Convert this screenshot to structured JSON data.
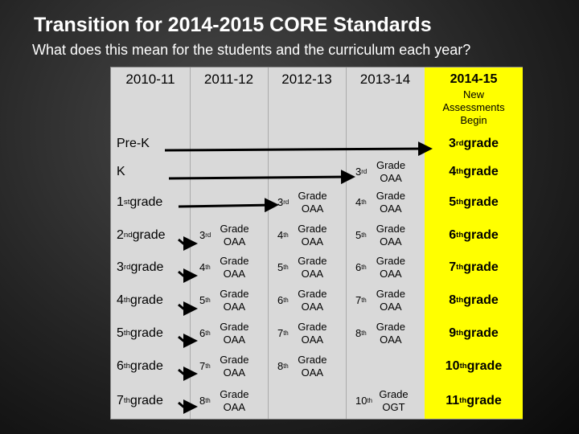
{
  "header": {
    "title": "Transition for 2014-2015 CORE Standards",
    "subtitle": "What does this mean for the students and the curriculum each year?"
  },
  "table": {
    "columns": [
      "2010-11",
      "2011-12",
      "2012-13",
      "2013-14",
      "2014-15"
    ],
    "note": "New Assessments Begin",
    "rows": [
      [
        "Pre-K",
        null,
        null,
        null,
        "3rd grade"
      ],
      [
        "K",
        null,
        null,
        "3rd Grade OAA",
        "4th grade"
      ],
      [
        "1st grade",
        null,
        "3rd Grade OAA",
        "4th Grade OAA",
        "5th grade"
      ],
      [
        "2nd grade",
        "3rd Grade OAA",
        "4th Grade OAA",
        "5th Grade OAA",
        "6th grade"
      ],
      [
        "3rd grade",
        "4th Grade OAA",
        "5th Grade OAA",
        "6th Grade OAA",
        "7th grade"
      ],
      [
        "4th grade",
        "5th Grade OAA",
        "6th Grade OAA",
        "7th Grade OAA",
        "8th grade"
      ],
      [
        "5th grade",
        "6th Grade OAA",
        "7th Grade OAA",
        "8th Grade OAA",
        "9th grade"
      ],
      [
        "6th grade",
        "7th Grade OAA",
        "8th Grade OAA",
        null,
        "10th grade"
      ],
      [
        "7th grade",
        "8th Grade OAA",
        null,
        "10th Grade OGT",
        "11th grade"
      ]
    ]
  }
}
